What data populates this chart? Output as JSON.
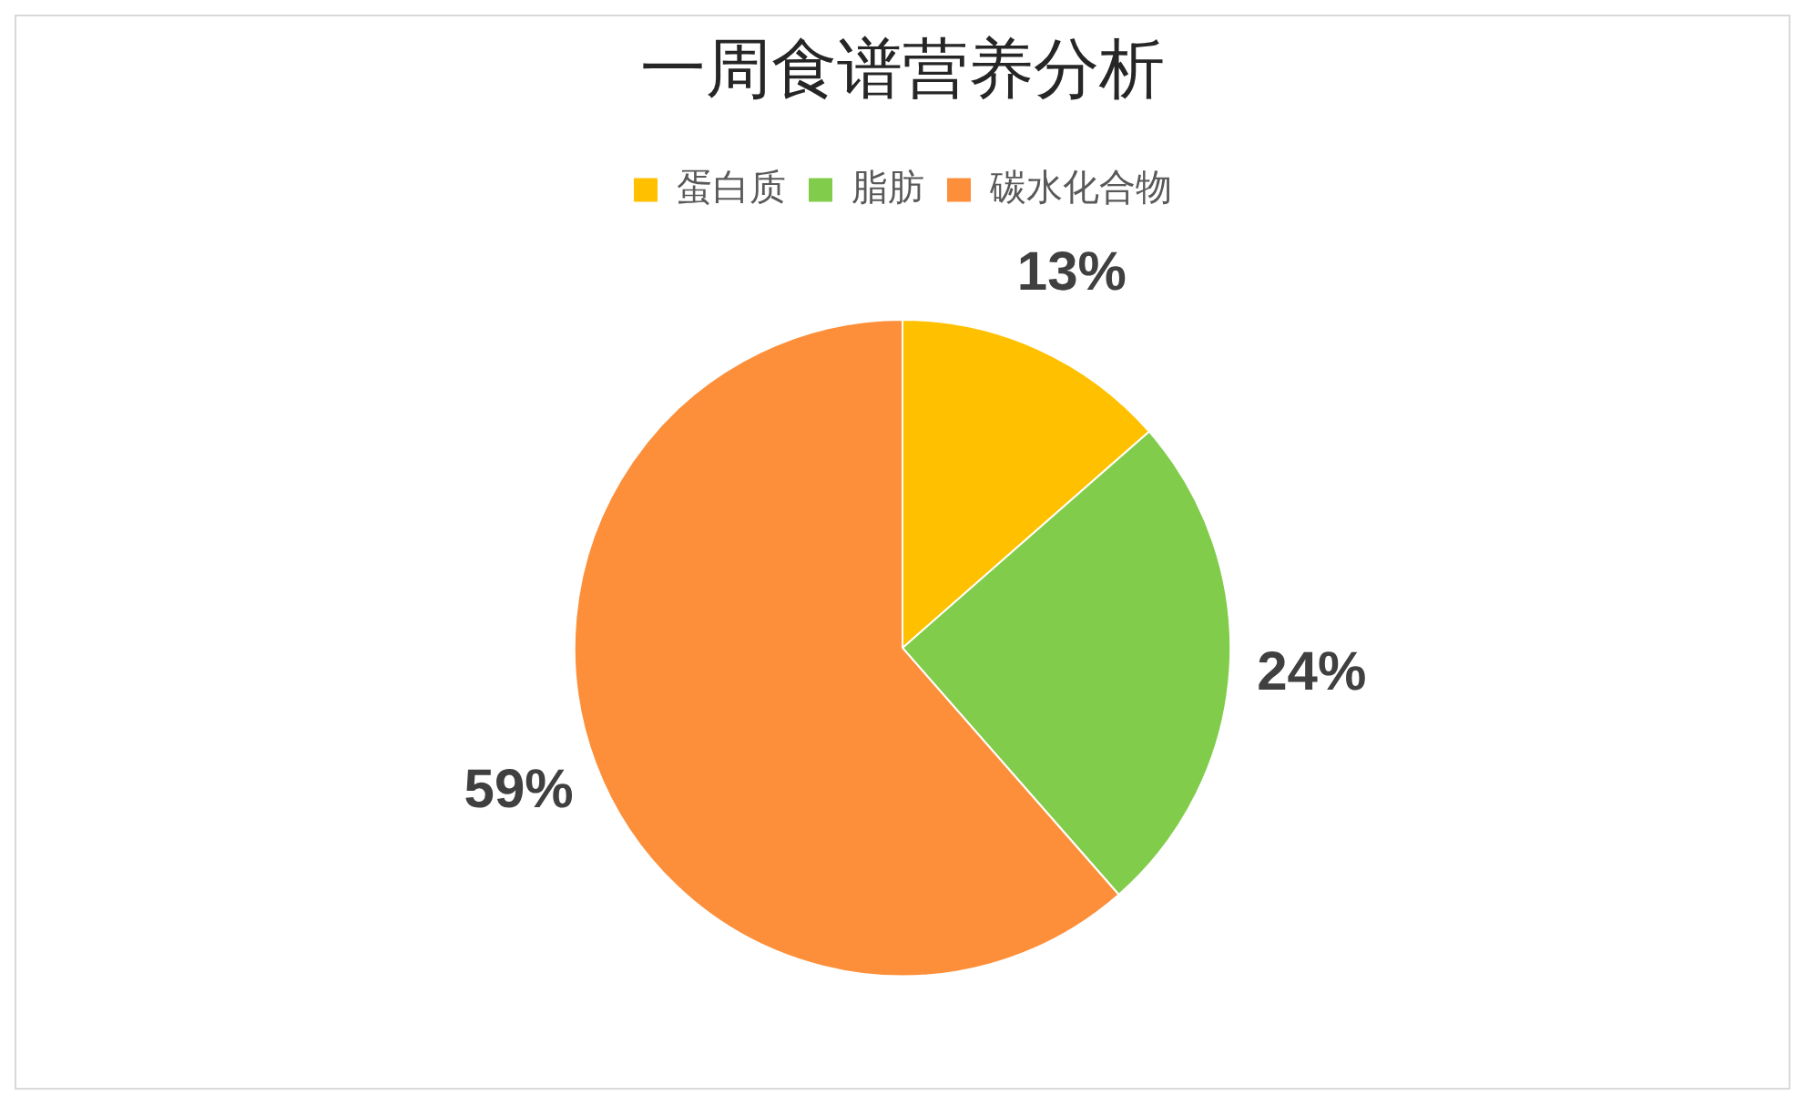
{
  "chart_data": {
    "type": "pie",
    "title": "一周食谱营养分析",
    "categories": [
      "蛋白质",
      "脂肪",
      "碳水化合物"
    ],
    "values": [
      13,
      24,
      59
    ],
    "colors": [
      "#ffc000",
      "#82cc4c",
      "#fd8f3a"
    ],
    "value_labels": [
      "13%",
      "24%",
      "59%"
    ],
    "legend": "top"
  }
}
